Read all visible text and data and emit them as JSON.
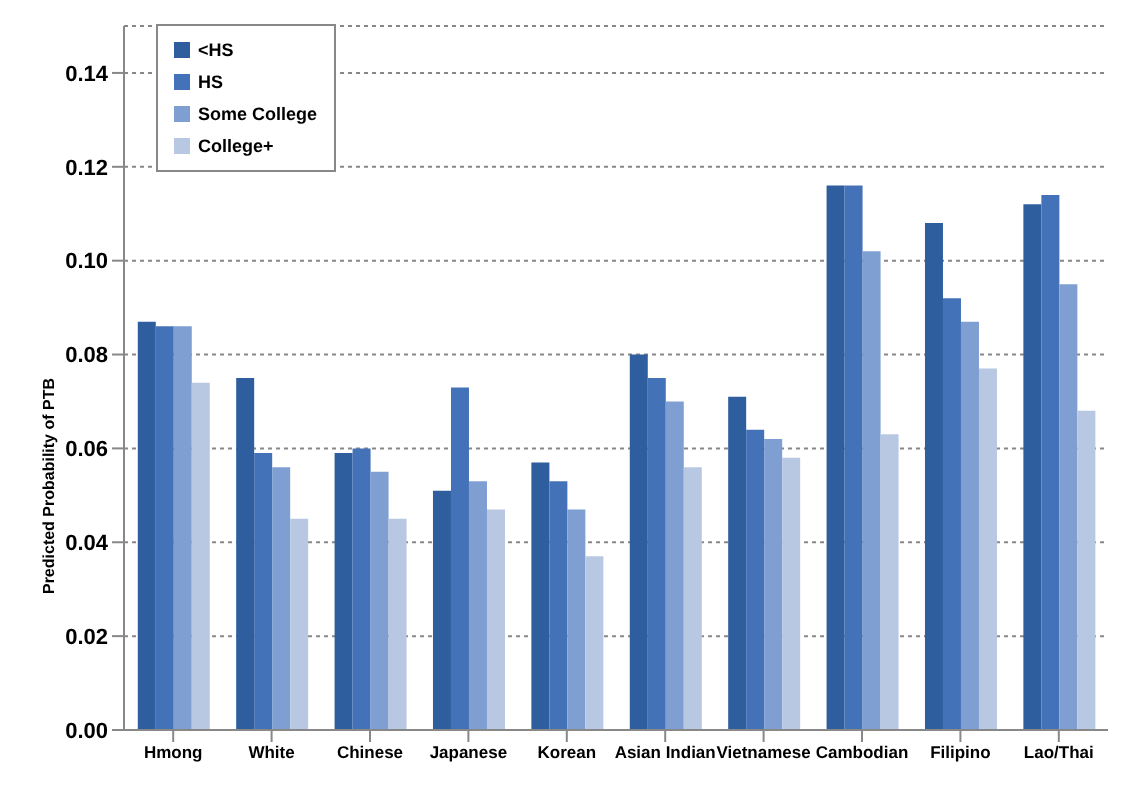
{
  "chart_data": {
    "type": "bar",
    "ylabel": "Predicted Probability of PTB",
    "categories": [
      "Hmong",
      "White",
      "Chinese",
      "Japanese",
      "Korean",
      "Asian Indian",
      "Vietnamese",
      "Cambodian",
      "Filipino",
      "Lao/Thai"
    ],
    "series": [
      {
        "name": "<HS",
        "color": "#2f5e9e",
        "values": [
          0.087,
          0.075,
          0.059,
          0.051,
          0.057,
          0.08,
          0.071,
          0.116,
          0.108,
          0.112
        ]
      },
      {
        "name": "HS",
        "color": "#4472b8",
        "values": [
          0.086,
          0.059,
          0.06,
          0.073,
          0.053,
          0.075,
          0.064,
          0.116,
          0.092,
          0.114
        ]
      },
      {
        "name": "Some College",
        "color": "#7f9fd2",
        "values": [
          0.086,
          0.056,
          0.055,
          0.053,
          0.047,
          0.07,
          0.062,
          0.102,
          0.087,
          0.095
        ]
      },
      {
        "name": "College+",
        "color": "#b8c8e3",
        "values": [
          0.074,
          0.045,
          0.045,
          0.047,
          0.037,
          0.056,
          0.058,
          0.063,
          0.077,
          0.068
        ]
      }
    ],
    "ylim": [
      0,
      0.15
    ],
    "yticks": [
      {
        "value": 0,
        "label": "0.00"
      },
      {
        "value": 0.02,
        "label": "0.02"
      },
      {
        "value": 0.04,
        "label": "0.04"
      },
      {
        "value": 0.06,
        "label": "0.06"
      },
      {
        "value": 0.08,
        "label": "0.08"
      },
      {
        "value": 0.1,
        "label": "0.10"
      },
      {
        "value": 0.12,
        "label": "0.12"
      },
      {
        "value": 0.14,
        "label": "0.14"
      }
    ],
    "grid": "y",
    "legend": "top left"
  }
}
